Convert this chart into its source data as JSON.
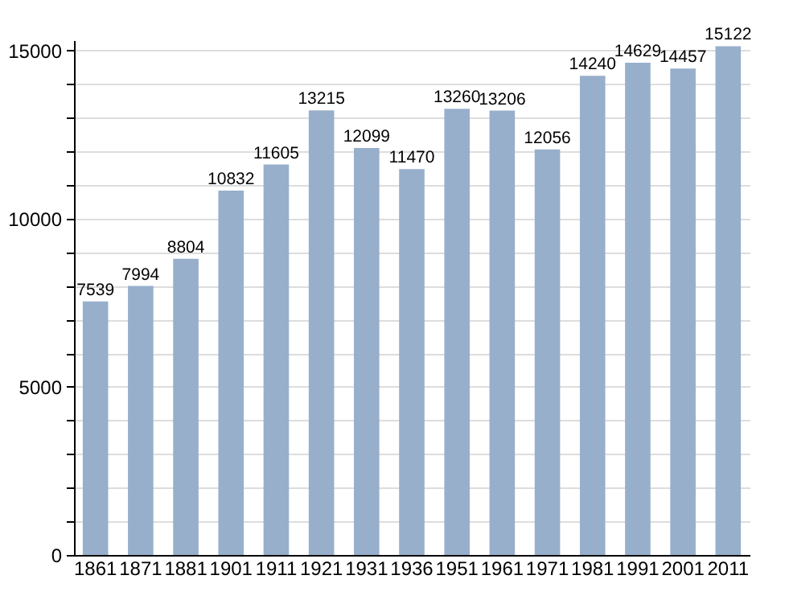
{
  "chart_data": {
    "type": "bar",
    "categories": [
      "1861",
      "1871",
      "1881",
      "1901",
      "1911",
      "1921",
      "1931",
      "1936",
      "1951",
      "1961",
      "1971",
      "1981",
      "1991",
      "2001",
      "2011"
    ],
    "values": [
      7539,
      7994,
      8804,
      10832,
      11605,
      13215,
      12099,
      11470,
      13260,
      13206,
      12056,
      14240,
      14629,
      14457,
      15122
    ],
    "color": "#97afcb",
    "data_labels": true,
    "ylim": [
      0,
      15300
    ],
    "yticks": [
      0,
      {
        "value": 1000,
        "label": null
      },
      {
        "value": 2000,
        "label": null
      },
      {
        "value": 3000,
        "label": null
      },
      {
        "value": 4000,
        "label": null
      },
      5000,
      {
        "value": 6000,
        "label": null
      },
      {
        "value": 7000,
        "label": null
      },
      {
        "value": 8000,
        "label": null
      },
      {
        "value": 9000,
        "label": null
      },
      10000,
      {
        "value": 11000,
        "label": null
      },
      {
        "value": 12000,
        "label": null
      },
      {
        "value": 13000,
        "label": null
      },
      {
        "value": 14000,
        "label": null
      },
      15000
    ],
    "grid": "y"
  }
}
